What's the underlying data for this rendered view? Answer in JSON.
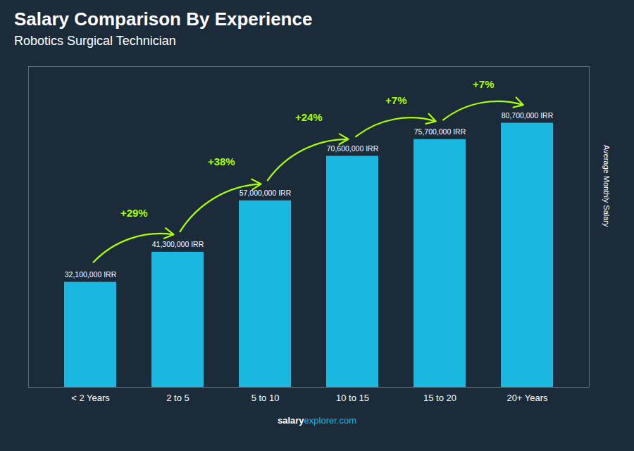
{
  "chart_data": {
    "type": "bar",
    "title": "Salary Comparison By Experience",
    "subtitle": "Robotics Surgical Technician",
    "ylabel": "Average Monthly Salary",
    "categories": [
      "< 2 Years",
      "2 to 5",
      "5 to 10",
      "10 to 15",
      "15 to 20",
      "20+ Years"
    ],
    "values": [
      32100000,
      41300000,
      57000000,
      70600000,
      75700000,
      80700000
    ],
    "value_labels": [
      "32,100,000 IRR",
      "41,300,000 IRR",
      "57,000,000 IRR",
      "70,600,000 IRR",
      "75,700,000 IRR",
      "80,700,000 IRR"
    ],
    "data_labels": true,
    "color": "#18b8e0",
    "ylim": [
      0,
      98000000
    ],
    "tick_labels": "x",
    "grid": false,
    "annotations": {
      "texts": [
        null,
        "+29%",
        "+38%",
        "+24%",
        "+7%",
        "+7%"
      ],
      "color": "#aaff00"
    },
    "footer": [
      "salary",
      "explorer.com"
    ]
  }
}
